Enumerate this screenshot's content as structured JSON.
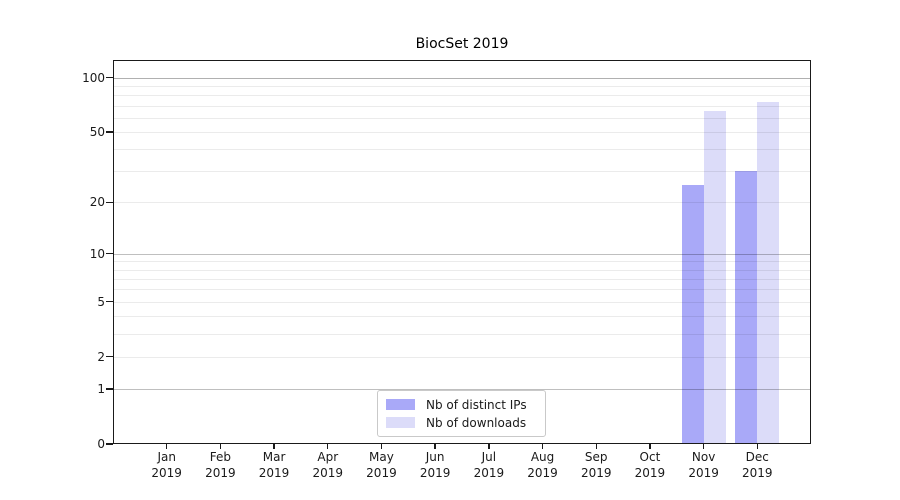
{
  "chart_data": {
    "type": "bar",
    "title": "BiocSet 2019",
    "categories": [
      "Jan",
      "Feb",
      "Mar",
      "Apr",
      "May",
      "Jun",
      "Jul",
      "Aug",
      "Sep",
      "Oct",
      "Nov",
      "Dec"
    ],
    "category_year": "2019",
    "series": [
      {
        "name": "Nb of distinct IPs",
        "color": "#a9a9f8",
        "values": [
          0,
          0,
          0,
          0,
          0,
          0,
          0,
          0,
          0,
          0,
          25,
          30
        ]
      },
      {
        "name": "Nb of downloads",
        "color": "#dcdcf9",
        "values": [
          0,
          0,
          0,
          0,
          0,
          0,
          0,
          0,
          0,
          0,
          65,
          73
        ]
      }
    ],
    "y_scale": "log1p",
    "y_ticks": [
      0,
      1,
      2,
      5,
      10,
      20,
      50,
      100
    ],
    "y_major_gridlines": [
      1,
      10,
      100
    ],
    "ylim": [
      0,
      125
    ],
    "xlabel": "",
    "ylabel": "",
    "grid": true,
    "legend_position": "lower center",
    "colors": {
      "axis": "#1a1a1a",
      "major_grid": "rgba(0,0,0,0.25)",
      "minor_grid": "rgba(0,0,0,0.08)",
      "background": "#ffffff"
    }
  }
}
